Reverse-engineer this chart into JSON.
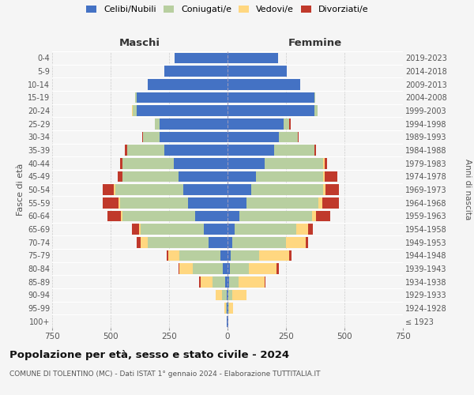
{
  "age_groups": [
    "100+",
    "95-99",
    "90-94",
    "85-89",
    "80-84",
    "75-79",
    "70-74",
    "65-69",
    "60-64",
    "55-59",
    "50-54",
    "45-49",
    "40-44",
    "35-39",
    "30-34",
    "25-29",
    "20-24",
    "15-19",
    "10-14",
    "5-9",
    "0-4"
  ],
  "birth_years": [
    "≤ 1923",
    "1924-1928",
    "1929-1933",
    "1934-1938",
    "1939-1943",
    "1944-1948",
    "1949-1953",
    "1954-1958",
    "1959-1963",
    "1964-1968",
    "1969-1973",
    "1974-1978",
    "1979-1983",
    "1984-1988",
    "1989-1993",
    "1994-1998",
    "1999-2003",
    "2004-2008",
    "2009-2013",
    "2014-2018",
    "2019-2023"
  ],
  "colors": {
    "celibi": "#4472c4",
    "coniugati": "#b8cfa0",
    "vedovi": "#ffd780",
    "divorziati": "#c0392b"
  },
  "male": {
    "celibi": [
      2,
      3,
      5,
      10,
      20,
      30,
      80,
      100,
      140,
      170,
      190,
      210,
      230,
      270,
      290,
      290,
      390,
      390,
      340,
      270,
      225
    ],
    "coniugati": [
      0,
      5,
      20,
      55,
      130,
      175,
      260,
      270,
      310,
      290,
      290,
      240,
      220,
      160,
      70,
      20,
      15,
      5,
      0,
      0,
      0
    ],
    "vedovi": [
      0,
      5,
      25,
      50,
      55,
      50,
      30,
      10,
      5,
      5,
      5,
      0,
      0,
      0,
      0,
      0,
      5,
      0,
      0,
      0,
      0
    ],
    "divorziati": [
      0,
      0,
      0,
      5,
      5,
      5,
      20,
      30,
      60,
      70,
      50,
      20,
      10,
      10,
      5,
      0,
      0,
      0,
      0,
      0,
      0
    ]
  },
  "female": {
    "celibi": [
      2,
      3,
      5,
      8,
      10,
      15,
      20,
      30,
      50,
      80,
      100,
      120,
      160,
      200,
      220,
      240,
      370,
      370,
      310,
      255,
      215
    ],
    "coniugati": [
      0,
      5,
      15,
      40,
      80,
      120,
      230,
      265,
      310,
      310,
      310,
      290,
      250,
      170,
      80,
      25,
      15,
      5,
      0,
      0,
      0
    ],
    "vedovi": [
      3,
      15,
      60,
      110,
      120,
      130,
      85,
      50,
      20,
      15,
      10,
      5,
      5,
      0,
      0,
      0,
      0,
      0,
      0,
      0,
      0
    ],
    "divorziati": [
      0,
      0,
      0,
      5,
      10,
      10,
      10,
      20,
      60,
      70,
      55,
      55,
      10,
      10,
      5,
      5,
      0,
      0,
      0,
      0,
      0
    ]
  },
  "title": "Popolazione per età, sesso e stato civile - 2024",
  "subtitle": "COMUNE DI TOLENTINO (MC) - Dati ISTAT 1° gennaio 2024 - Elaborazione TUTTITALIA.IT",
  "xlabel_left": "Maschi",
  "xlabel_right": "Femmine",
  "ylabel_left": "Fasce di età",
  "ylabel_right": "Anni di nascita",
  "xlim": 750,
  "background_color": "#f5f5f5",
  "grid_color": "#cccccc",
  "legend_labels": [
    "Celibi/Nubili",
    "Coniugati/e",
    "Vedovi/e",
    "Divorziati/e"
  ]
}
